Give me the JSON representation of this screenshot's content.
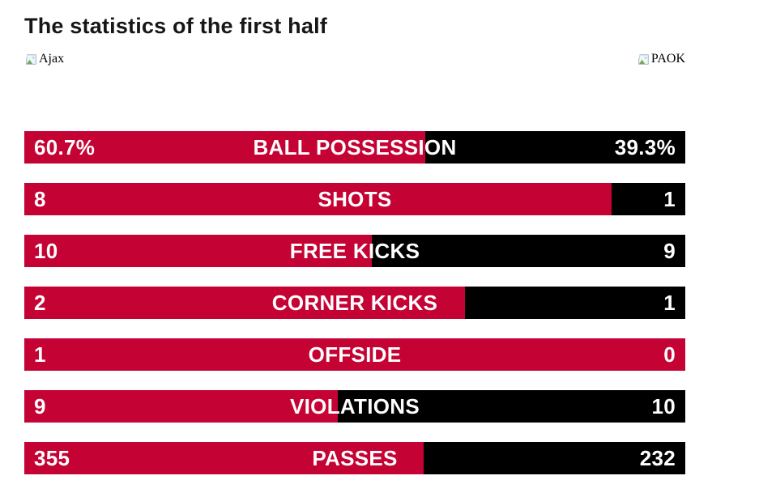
{
  "title": "The statistics of the first half",
  "teams": {
    "home": {
      "name": "Ajax"
    },
    "away": {
      "name": "PAOK"
    }
  },
  "colors": {
    "home": "#c40233",
    "away": "#000000",
    "bar_text": "#ffffff",
    "title": "#161616"
  },
  "chart_data": {
    "type": "bar",
    "variant": "split-comparison-bars",
    "title": "The statistics of the first half",
    "legend": [
      "Ajax",
      "PAOK"
    ],
    "legend_position": "top",
    "rows": [
      {
        "label": "BALL POSSESSION",
        "home": 60.7,
        "away": 39.3,
        "home_display": "60.7%",
        "away_display": "39.3%"
      },
      {
        "label": "SHOTS",
        "home": 8,
        "away": 1,
        "home_display": "8",
        "away_display": "1"
      },
      {
        "label": "FREE KICKS",
        "home": 10,
        "away": 9,
        "home_display": "10",
        "away_display": "9"
      },
      {
        "label": "CORNER KICKS",
        "home": 2,
        "away": 1,
        "home_display": "2",
        "away_display": "1"
      },
      {
        "label": "OFFSIDE",
        "home": 1,
        "away": 0,
        "home_display": "1",
        "away_display": "0"
      },
      {
        "label": "VIOLATIONS",
        "home": 9,
        "away": 10,
        "home_display": "9",
        "away_display": "10"
      },
      {
        "label": "PASSES",
        "home": 355,
        "away": 232,
        "home_display": "355",
        "away_display": "232"
      }
    ]
  }
}
